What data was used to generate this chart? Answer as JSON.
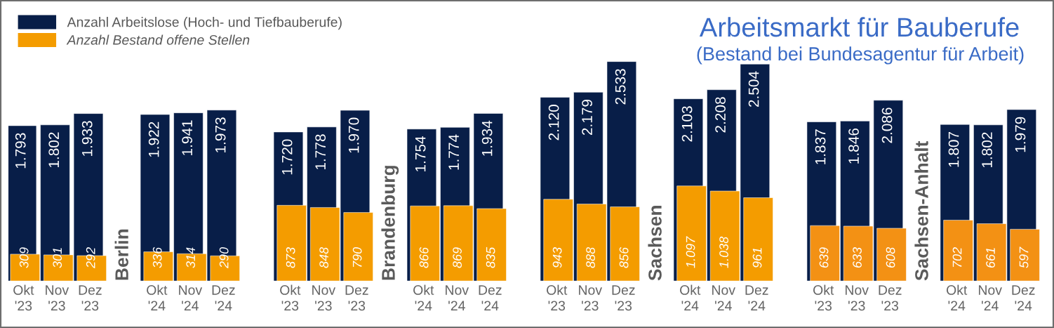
{
  "chart_data": {
    "type": "bar",
    "title": "Arbeitsmarkt für Bauberufe",
    "subtitle": "(Bestand bei Bundesagentur für Arbeit)",
    "categories": [
      "Okt\n'23",
      "Nov\n'23",
      "Dez\n'23",
      "Okt\n'24",
      "Nov\n'24",
      "Dez\n'24",
      "Okt\n'23",
      "Nov\n'23",
      "Dez\n'23",
      "Okt\n'24",
      "Nov\n'24",
      "Dez\n'24",
      "Okt\n'23",
      "Nov\n'23",
      "Dez\n'23",
      "Okt\n'24",
      "Nov\n'24",
      "Dez\n'24",
      "Okt\n'23",
      "Nov\n'23",
      "Dez\n'23",
      "Okt\n'24",
      "Nov\n'24",
      "Dez\n'24"
    ],
    "series": [
      {
        "name": "Anzahl Arbeitslose (Hoch- und Tiefbauberufe)",
        "color": "#081e48",
        "values": [
          1793,
          1802,
          1933,
          1922,
          1941,
          1973,
          1720,
          1778,
          1970,
          1754,
          1774,
          1934,
          2120,
          2179,
          2533,
          2103,
          2208,
          2504,
          1837,
          1846,
          2086,
          1807,
          1802,
          1979
        ],
        "value_labels": [
          "1.793",
          "1.802",
          "1.933",
          "1.922",
          "1.941",
          "1.973",
          "1.720",
          "1.778",
          "1.970",
          "1.754",
          "1.774",
          "1.934",
          "2.120",
          "2.179",
          "2.533",
          "2.103",
          "2.208",
          "2.504",
          "1.837",
          "1.846",
          "2.086",
          "1.807",
          "1.802",
          "1.979"
        ]
      },
      {
        "name": "Anzahl Bestand offene Stellen",
        "color": "#f49c00",
        "colors": [
          "#f49c00",
          "#f49c00",
          "#f49c00",
          "#f49c00",
          "#f49c00",
          "#f49c00",
          "#f49c00",
          "#f49c00",
          "#f49c00",
          "#f49c00",
          "#f49c00",
          "#f49c00",
          "#f49c00",
          "#f49c00",
          "#f49c00",
          "#f49c00",
          "#f49c00",
          "#f49c00",
          "#f39114",
          "#f39114",
          "#f39114",
          "#f39114",
          "#f39114",
          "#f39114"
        ],
        "values": [
          309,
          301,
          292,
          336,
          314,
          290,
          873,
          848,
          790,
          866,
          869,
          835,
          943,
          888,
          856,
          1097,
          1038,
          961,
          639,
          633,
          608,
          702,
          661,
          597
        ],
        "value_labels": [
          "309",
          "301",
          "292",
          "336",
          "314",
          "290",
          "873",
          "848",
          "790",
          "866",
          "869",
          "835",
          "943",
          "888",
          "856",
          "1.097",
          "1.038",
          "961",
          "639",
          "633",
          "608",
          "702",
          "661",
          "597"
        ]
      }
    ],
    "annotations": [
      "Berlin",
      "Brandenburg",
      "Sachsen",
      "Sachsen-Anhalt"
    ],
    "legend": "top left",
    "grid": false
  }
}
